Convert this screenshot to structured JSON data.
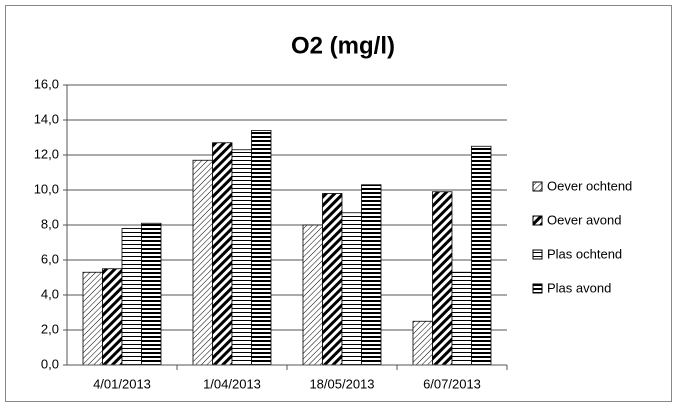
{
  "chart_data": {
    "type": "bar",
    "title": "O2 (mg/l)",
    "categories": [
      "4/01/2013",
      "1/04/2013",
      "18/05/2013",
      "6/07/2013"
    ],
    "series": [
      {
        "name": "Oever ochtend",
        "color": "#000000",
        "pattern": "light-diagonal",
        "values": [
          5.3,
          11.7,
          8.0,
          2.5
        ]
      },
      {
        "name": "Oever avond",
        "color": "#000000",
        "pattern": "wide-diagonal",
        "values": [
          5.5,
          12.7,
          9.8,
          9.9
        ]
      },
      {
        "name": "Plas ochtend",
        "color": "#000000",
        "pattern": "light-horizontal",
        "values": [
          7.8,
          12.3,
          8.7,
          5.3
        ]
      },
      {
        "name": "Plas avond",
        "color": "#000000",
        "pattern": "wide-horizontal",
        "values": [
          8.1,
          13.4,
          10.3,
          12.5
        ]
      }
    ],
    "ylim": [
      0,
      16
    ],
    "yticks": [
      {
        "value": 0,
        "label": "0,0"
      },
      {
        "value": 2,
        "label": "2,0"
      },
      {
        "value": 4,
        "label": "4,0"
      },
      {
        "value": 6,
        "label": "6,0"
      },
      {
        "value": 8,
        "label": "8,0"
      },
      {
        "value": 10,
        "label": "10,0"
      },
      {
        "value": 12,
        "label": "12,0"
      },
      {
        "value": 14,
        "label": "14,0"
      },
      {
        "value": 16,
        "label": "16,0"
      }
    ],
    "grid": true,
    "legend": "right"
  }
}
